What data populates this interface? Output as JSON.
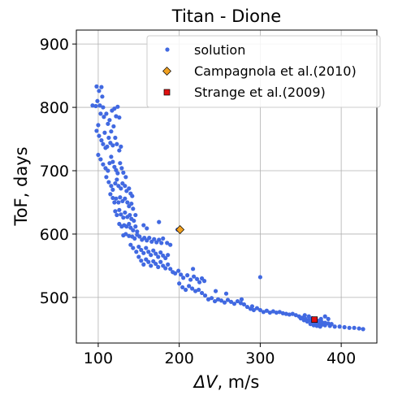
{
  "chart_data": {
    "type": "scatter",
    "title": "Titan - Dione",
    "xlabel_symbol": "ΔV",
    "xlabel_rest": ", m/s",
    "ylabel": "ToF, days",
    "xlim": [
      73,
      444
    ],
    "ylim": [
      428,
      922
    ],
    "xticks": [
      100,
      200,
      300,
      400
    ],
    "yticks": [
      500,
      600,
      700,
      800,
      900
    ],
    "grid": true,
    "legend_position": "upper-right",
    "series": [
      {
        "name": "solution",
        "marker": "circle",
        "color": "#4169e1",
        "points": [
          [
            93,
            803
          ],
          [
            97,
            802
          ],
          [
            102,
            803
          ],
          [
            106,
            800
          ],
          [
            98,
            833
          ],
          [
            104,
            832
          ],
          [
            101,
            826
          ],
          [
            105,
            817
          ],
          [
            99,
            810
          ],
          [
            103,
            790
          ],
          [
            107,
            785
          ],
          [
            100,
            772
          ],
          [
            110,
            790
          ],
          [
            112,
            774
          ],
          [
            108,
            760
          ],
          [
            114,
            780
          ],
          [
            117,
            795
          ],
          [
            120,
            798
          ],
          [
            124,
            801
          ],
          [
            122,
            786
          ],
          [
            126,
            784
          ],
          [
            119,
            770
          ],
          [
            116,
            762
          ],
          [
            98,
            763
          ],
          [
            101,
            755
          ],
          [
            104,
            748
          ],
          [
            106,
            742
          ],
          [
            109,
            736
          ],
          [
            111,
            738
          ],
          [
            113,
            752
          ],
          [
            115,
            744
          ],
          [
            118,
            740
          ],
          [
            121,
            752
          ],
          [
            123,
            742
          ],
          [
            126,
            732
          ],
          [
            128,
            738
          ],
          [
            100,
            725
          ],
          [
            103,
            718
          ],
          [
            106,
            710
          ],
          [
            109,
            704
          ],
          [
            112,
            700
          ],
          [
            114,
            712
          ],
          [
            116,
            722
          ],
          [
            118,
            714
          ],
          [
            120,
            706
          ],
          [
            122,
            701
          ],
          [
            124,
            696
          ],
          [
            127,
            712
          ],
          [
            129,
            704
          ],
          [
            131,
            697
          ],
          [
            134,
            690
          ],
          [
            110,
            690
          ],
          [
            113,
            682
          ],
          [
            116,
            676
          ],
          [
            118,
            670
          ],
          [
            121,
            680
          ],
          [
            123,
            686
          ],
          [
            125,
            676
          ],
          [
            128,
            672
          ],
          [
            130,
            680
          ],
          [
            133,
            676
          ],
          [
            135,
            668
          ],
          [
            138,
            672
          ],
          [
            140,
            664
          ],
          [
            142,
            660
          ],
          [
            115,
            663
          ],
          [
            118,
            657
          ],
          [
            120,
            650
          ],
          [
            122,
            656
          ],
          [
            125,
            650
          ],
          [
            127,
            658
          ],
          [
            130,
            652
          ],
          [
            133,
            656
          ],
          [
            136,
            650
          ],
          [
            138,
            644
          ],
          [
            141,
            648
          ],
          [
            143,
            640
          ],
          [
            121,
            636
          ],
          [
            123,
            630
          ],
          [
            126,
            638
          ],
          [
            128,
            631
          ],
          [
            131,
            626
          ],
          [
            133,
            634
          ],
          [
            136,
            627
          ],
          [
            139,
            630
          ],
          [
            141,
            624
          ],
          [
            144,
            621
          ],
          [
            146,
            630
          ],
          [
            126,
            616
          ],
          [
            129,
            612
          ],
          [
            132,
            614
          ],
          [
            135,
            612
          ],
          [
            138,
            616
          ],
          [
            140,
            610
          ],
          [
            143,
            606
          ],
          [
            146,
            612
          ],
          [
            148,
            604
          ],
          [
            156,
            614
          ],
          [
            160,
            609
          ],
          [
            175,
            619
          ],
          [
            131,
            598
          ],
          [
            134,
            600
          ],
          [
            138,
            597
          ],
          [
            142,
            596
          ],
          [
            145,
            593
          ],
          [
            148,
            599
          ],
          [
            151,
            596
          ],
          [
            154,
            591
          ],
          [
            157,
            594
          ],
          [
            160,
            590
          ],
          [
            163,
            594
          ],
          [
            166,
            588
          ],
          [
            169,
            592
          ],
          [
            172,
            587
          ],
          [
            175,
            591
          ],
          [
            178,
            586
          ],
          [
            180,
            593
          ],
          [
            185,
            586
          ],
          [
            189,
            583
          ],
          [
            140,
            583
          ],
          [
            143,
            578
          ],
          [
            147,
            572
          ],
          [
            150,
            580
          ],
          [
            153,
            575
          ],
          [
            156,
            570
          ],
          [
            159,
            578
          ],
          [
            162,
            572
          ],
          [
            165,
            567
          ],
          [
            168,
            574
          ],
          [
            171,
            569
          ],
          [
            174,
            564
          ],
          [
            177,
            571
          ],
          [
            180,
            566
          ],
          [
            150,
            564
          ],
          [
            153,
            558
          ],
          [
            156,
            552
          ],
          [
            159,
            560
          ],
          [
            162,
            556
          ],
          [
            165,
            550
          ],
          [
            168,
            557
          ],
          [
            171,
            553
          ],
          [
            174,
            548
          ],
          [
            177,
            556
          ],
          [
            180,
            550
          ],
          [
            183,
            546
          ],
          [
            186,
            552
          ],
          [
            189,
            545
          ],
          [
            192,
            540
          ],
          [
            183,
            562
          ],
          [
            186,
            567
          ],
          [
            195,
            538
          ],
          [
            199,
            542
          ],
          [
            202,
            536
          ],
          [
            205,
            531
          ],
          [
            210,
            535
          ],
          [
            214,
            528
          ],
          [
            218,
            533
          ],
          [
            222,
            529
          ],
          [
            225,
            524
          ],
          [
            228,
            530
          ],
          [
            231,
            526
          ],
          [
            200,
            522
          ],
          [
            204,
            516
          ],
          [
            208,
            512
          ],
          [
            212,
            518
          ],
          [
            216,
            514
          ],
          [
            220,
            510
          ],
          [
            224,
            512
          ],
          [
            228,
            507
          ],
          [
            232,
            503
          ],
          [
            236,
            497
          ],
          [
            240,
            499
          ],
          [
            244,
            494
          ],
          [
            248,
            497
          ],
          [
            252,
            495
          ],
          [
            256,
            492
          ],
          [
            260,
            496
          ],
          [
            264,
            493
          ],
          [
            268,
            490
          ],
          [
            272,
            494
          ],
          [
            276,
            491
          ],
          [
            280,
            489
          ],
          [
            284,
            485
          ],
          [
            288,
            482
          ],
          [
            292,
            480
          ],
          [
            296,
            483
          ],
          [
            300,
            480
          ],
          [
            304,
            477
          ],
          [
            308,
            479
          ],
          [
            312,
            476
          ],
          [
            316,
            478
          ],
          [
            320,
            476
          ],
          [
            324,
            477
          ],
          [
            328,
            475
          ],
          [
            332,
            474
          ],
          [
            336,
            473
          ],
          [
            340,
            474
          ],
          [
            344,
            472
          ],
          [
            348,
            470
          ],
          [
            352,
            468
          ],
          [
            356,
            466
          ],
          [
            360,
            464
          ],
          [
            364,
            462
          ],
          [
            368,
            460
          ],
          [
            372,
            458
          ],
          [
            376,
            457
          ],
          [
            380,
            456
          ],
          [
            386,
            455
          ],
          [
            392,
            454
          ],
          [
            398,
            454
          ],
          [
            404,
            453
          ],
          [
            410,
            452
          ],
          [
            416,
            452
          ],
          [
            422,
            451
          ],
          [
            427,
            450
          ],
          [
            355,
            472
          ],
          [
            360,
            470
          ],
          [
            364,
            467
          ],
          [
            368,
            465
          ],
          [
            372,
            463
          ],
          [
            376,
            461
          ],
          [
            380,
            460
          ],
          [
            384,
            459
          ],
          [
            388,
            458
          ],
          [
            350,
            467
          ],
          [
            354,
            464
          ],
          [
            358,
            462
          ],
          [
            362,
            458
          ],
          [
            366,
            456
          ],
          [
            370,
            455
          ],
          [
            374,
            454
          ],
          [
            300,
            532
          ],
          [
            258,
            506
          ],
          [
            277,
            497
          ],
          [
            290,
            486
          ],
          [
            245,
            510
          ],
          [
            217,
            545
          ],
          [
            198,
            607
          ],
          [
            375,
            466
          ],
          [
            380,
            470
          ],
          [
            384,
            466
          ]
        ]
      },
      {
        "name": "Campagnola et al.(2010)",
        "marker": "diamond",
        "color": "#f0a020",
        "points": [
          [
            201,
            607
          ]
        ]
      },
      {
        "name": "Strange et al.(2009)",
        "marker": "square",
        "color": "#e01010",
        "points": [
          [
            367,
            465
          ]
        ]
      }
    ]
  }
}
